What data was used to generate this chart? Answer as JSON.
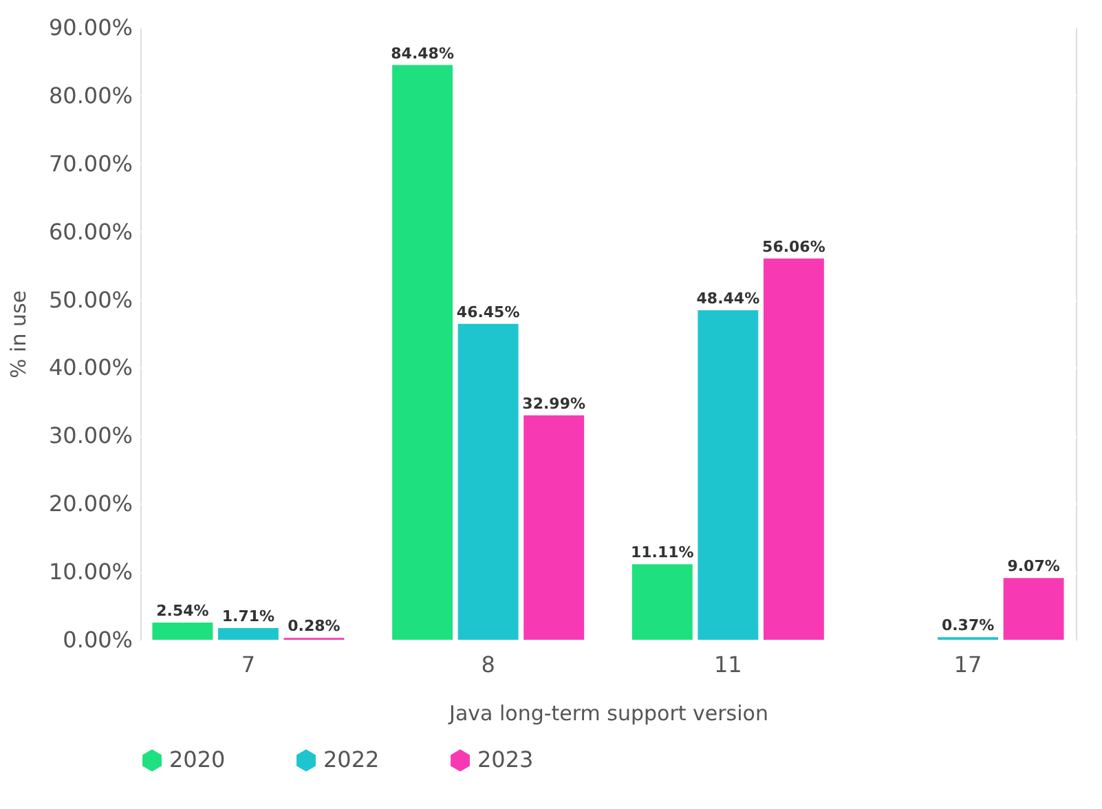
{
  "chart_data": {
    "type": "bar",
    "xlabel": "Java long-term support version",
    "ylabel": "% in use",
    "categories": [
      "7",
      "8",
      "11",
      "17"
    ],
    "series": [
      {
        "name": "2020",
        "color": "#1ee07f",
        "values": [
          2.54,
          84.48,
          11.11,
          null
        ],
        "value_labels": [
          "2.54%",
          "84.48%",
          "11.11%",
          null
        ]
      },
      {
        "name": "2022",
        "color": "#1ec5cf",
        "values": [
          1.71,
          46.45,
          48.44,
          0.37
        ],
        "value_labels": [
          "1.71%",
          "46.45%",
          "48.44%",
          "0.37%"
        ]
      },
      {
        "name": "2023",
        "color": "#f73ab3",
        "values": [
          0.28,
          32.99,
          56.06,
          9.07
        ],
        "value_labels": [
          "0.28%",
          "32.99%",
          "56.06%",
          "9.07%"
        ]
      }
    ],
    "ylim": [
      0,
      90
    ],
    "yticks": [
      {
        "value": 0,
        "label": "0.00%"
      },
      {
        "value": 10,
        "label": "10.00%"
      },
      {
        "value": 20,
        "label": "20.00%"
      },
      {
        "value": 30,
        "label": "30.00%"
      },
      {
        "value": 40,
        "label": "40.00%"
      },
      {
        "value": 50,
        "label": "50.00%"
      },
      {
        "value": 60,
        "label": "60.00%"
      },
      {
        "value": 70,
        "label": "70.00%"
      },
      {
        "value": 80,
        "label": "80.00%"
      },
      {
        "value": 90,
        "label": "90.00%"
      }
    ],
    "grid": "y",
    "legend": "bottom"
  }
}
